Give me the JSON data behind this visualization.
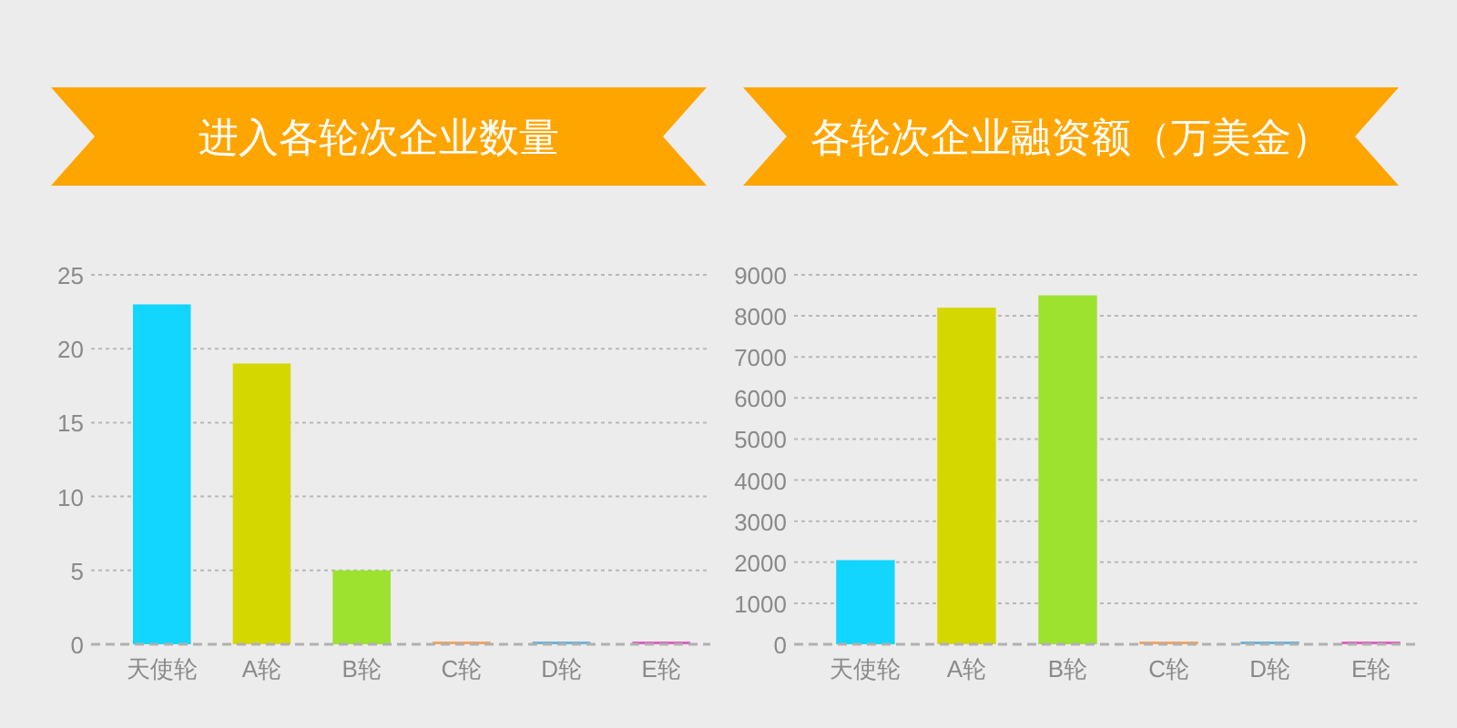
{
  "chart_data": [
    {
      "type": "bar",
      "title": "进入各轮次企业数量",
      "categories": [
        "天使轮",
        "A轮",
        "B轮",
        "C轮",
        "D轮",
        "E轮"
      ],
      "values": [
        23,
        19,
        5,
        0,
        0,
        0
      ],
      "colors": [
        "#12d6ff",
        "#d4d800",
        "#9de22e",
        "#f4a460",
        "#6cb4d8",
        "#e060c0"
      ],
      "ylim": [
        0,
        25
      ],
      "yticks": [
        0,
        5,
        10,
        15,
        20,
        25
      ],
      "grid": "y"
    },
    {
      "type": "bar",
      "title": "各轮次企业融资额（万美金）",
      "categories": [
        "天使轮",
        "A轮",
        "B轮",
        "C轮",
        "D轮",
        "E轮"
      ],
      "values": [
        2050,
        8200,
        8500,
        0,
        0,
        0
      ],
      "colors": [
        "#12d6ff",
        "#d4d800",
        "#9de22e",
        "#f4a460",
        "#6cb4d8",
        "#e060c0"
      ],
      "ylim": [
        0,
        9000
      ],
      "yticks": [
        0,
        1000,
        2000,
        3000,
        4000,
        5000,
        6000,
        7000,
        8000,
        9000
      ],
      "grid": "y"
    }
  ]
}
